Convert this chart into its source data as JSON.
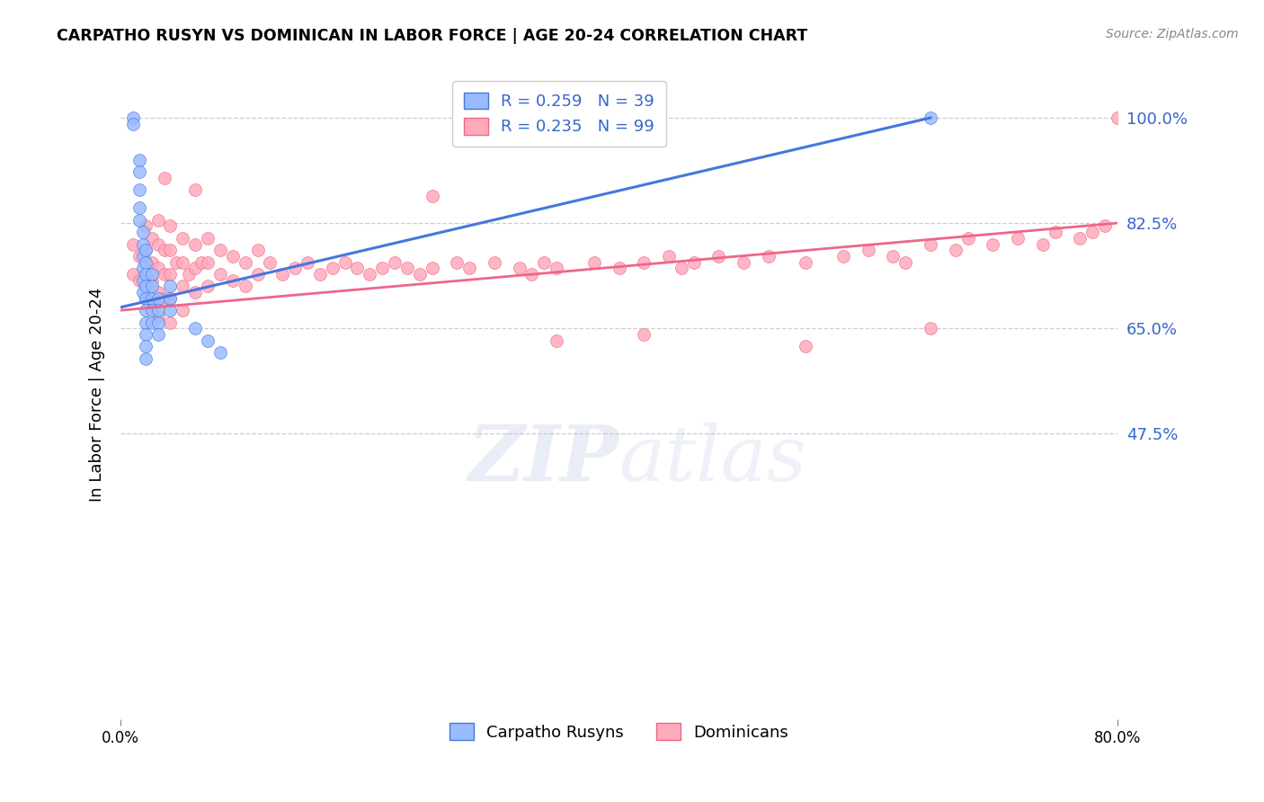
{
  "title": "CARPATHO RUSYN VS DOMINICAN IN LABOR FORCE | AGE 20-24 CORRELATION CHART",
  "source": "Source: ZipAtlas.com",
  "ylabel": "In Labor Force | Age 20-24",
  "ytick_labels": [
    "100.0%",
    "82.5%",
    "65.0%",
    "47.5%"
  ],
  "ytick_values": [
    1.0,
    0.825,
    0.65,
    0.475
  ],
  "xmin": 0.0,
  "xmax": 0.8,
  "ymin": 0.0,
  "ymax": 1.08,
  "watermark_zip": "ZIP",
  "watermark_atlas": "atlas",
  "legend_blue_label": "R = 0.259   N = 39",
  "legend_pink_label": "R = 0.235   N = 99",
  "legend_label_blue": "Carpatho Rusyns",
  "legend_label_pink": "Dominicans",
  "blue_color": "#99BBFF",
  "pink_color": "#FFAABB",
  "trendline_blue_color": "#4477DD",
  "trendline_pink_color": "#EE6688",
  "blue_trendline_x": [
    0.0,
    0.65
  ],
  "blue_trendline_y": [
    0.685,
    1.0
  ],
  "pink_trendline_x": [
    0.0,
    0.8
  ],
  "pink_trendline_y": [
    0.68,
    0.825
  ],
  "grid_color": "#CCCCCC",
  "bg_color": "#FFFFFF",
  "blue_scatter_x": [
    0.01,
    0.01,
    0.015,
    0.015,
    0.015,
    0.015,
    0.015,
    0.018,
    0.018,
    0.018,
    0.018,
    0.018,
    0.018,
    0.02,
    0.02,
    0.02,
    0.02,
    0.02,
    0.02,
    0.02,
    0.02,
    0.02,
    0.02,
    0.025,
    0.025,
    0.025,
    0.025,
    0.025,
    0.03,
    0.03,
    0.03,
    0.03,
    0.04,
    0.04,
    0.04,
    0.06,
    0.07,
    0.08,
    0.65
  ],
  "blue_scatter_y": [
    1.0,
    0.99,
    0.93,
    0.91,
    0.88,
    0.85,
    0.83,
    0.81,
    0.79,
    0.77,
    0.75,
    0.73,
    0.71,
    0.78,
    0.76,
    0.74,
    0.72,
    0.7,
    0.68,
    0.66,
    0.64,
    0.62,
    0.6,
    0.74,
    0.72,
    0.7,
    0.68,
    0.66,
    0.7,
    0.68,
    0.66,
    0.64,
    0.72,
    0.7,
    0.68,
    0.65,
    0.63,
    0.61,
    1.0
  ],
  "pink_scatter_x": [
    0.01,
    0.01,
    0.015,
    0.015,
    0.02,
    0.02,
    0.02,
    0.02,
    0.025,
    0.025,
    0.025,
    0.025,
    0.03,
    0.03,
    0.03,
    0.03,
    0.03,
    0.035,
    0.035,
    0.035,
    0.04,
    0.04,
    0.04,
    0.04,
    0.04,
    0.045,
    0.05,
    0.05,
    0.05,
    0.05,
    0.055,
    0.06,
    0.06,
    0.06,
    0.065,
    0.07,
    0.07,
    0.07,
    0.08,
    0.08,
    0.09,
    0.09,
    0.1,
    0.1,
    0.11,
    0.11,
    0.12,
    0.13,
    0.14,
    0.15,
    0.16,
    0.17,
    0.18,
    0.19,
    0.2,
    0.21,
    0.22,
    0.23,
    0.24,
    0.25,
    0.27,
    0.28,
    0.3,
    0.32,
    0.33,
    0.34,
    0.35,
    0.38,
    0.4,
    0.42,
    0.44,
    0.45,
    0.46,
    0.48,
    0.5,
    0.52,
    0.55,
    0.58,
    0.6,
    0.62,
    0.63,
    0.65,
    0.67,
    0.68,
    0.7,
    0.72,
    0.74,
    0.75,
    0.77,
    0.78,
    0.79,
    0.8,
    0.035,
    0.06,
    0.25,
    0.35,
    0.42,
    0.55,
    0.65
  ],
  "pink_scatter_y": [
    0.79,
    0.74,
    0.77,
    0.73,
    0.82,
    0.78,
    0.74,
    0.7,
    0.8,
    0.76,
    0.73,
    0.69,
    0.83,
    0.79,
    0.75,
    0.71,
    0.67,
    0.78,
    0.74,
    0.7,
    0.82,
    0.78,
    0.74,
    0.7,
    0.66,
    0.76,
    0.8,
    0.76,
    0.72,
    0.68,
    0.74,
    0.79,
    0.75,
    0.71,
    0.76,
    0.8,
    0.76,
    0.72,
    0.78,
    0.74,
    0.77,
    0.73,
    0.76,
    0.72,
    0.78,
    0.74,
    0.76,
    0.74,
    0.75,
    0.76,
    0.74,
    0.75,
    0.76,
    0.75,
    0.74,
    0.75,
    0.76,
    0.75,
    0.74,
    0.75,
    0.76,
    0.75,
    0.76,
    0.75,
    0.74,
    0.76,
    0.75,
    0.76,
    0.75,
    0.76,
    0.77,
    0.75,
    0.76,
    0.77,
    0.76,
    0.77,
    0.76,
    0.77,
    0.78,
    0.77,
    0.76,
    0.79,
    0.78,
    0.8,
    0.79,
    0.8,
    0.79,
    0.81,
    0.8,
    0.81,
    0.82,
    1.0,
    0.9,
    0.88,
    0.87,
    0.63,
    0.64,
    0.62,
    0.65
  ]
}
